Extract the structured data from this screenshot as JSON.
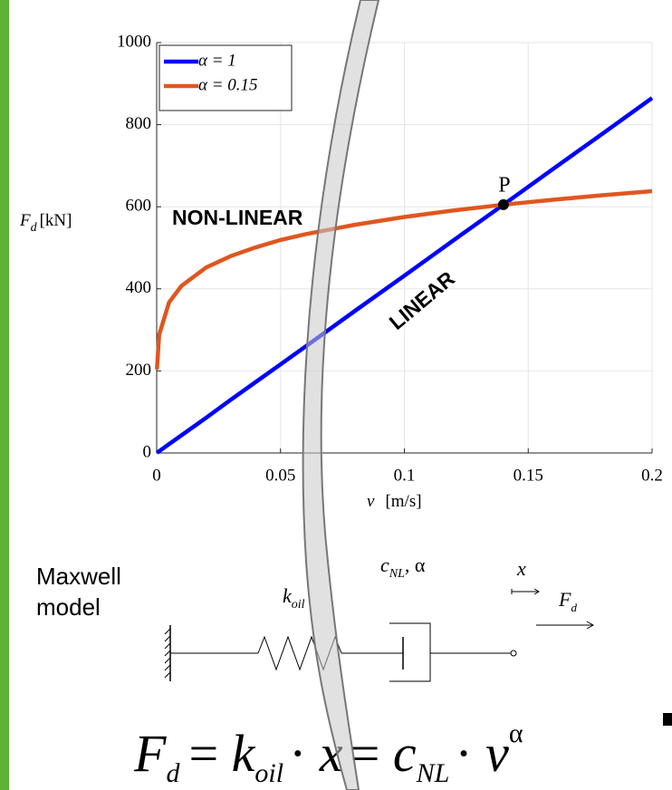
{
  "chart_data": {
    "type": "line",
    "x": [
      0.0001,
      0.001,
      0.005,
      0.01,
      0.02,
      0.03,
      0.04,
      0.05,
      0.06,
      0.08,
      0.1,
      0.12,
      0.14,
      0.16,
      0.18,
      0.2
    ],
    "series": [
      {
        "name": "α = 1",
        "color": "#0000ff",
        "values": [
          0.43,
          4.3,
          21.6,
          43,
          86,
          130,
          173,
          216,
          259,
          346,
          432,
          519,
          605,
          692,
          778,
          865
        ]
      },
      {
        "name": "α = 0.15",
        "color": "#e0561f",
        "values": [
          204,
          288,
          367,
          407,
          452,
          480,
          501,
          519,
          533,
          556,
          575,
          591,
          605,
          617,
          628,
          638
        ]
      }
    ],
    "xlim": [
      0,
      0.2
    ],
    "ylim": [
      0,
      1000
    ],
    "xticks": [
      0,
      0.05,
      0.1,
      0.15,
      0.2
    ],
    "yticks": [
      0,
      200,
      400,
      600,
      800,
      1000
    ],
    "grid": true,
    "legend": "upper left",
    "xlabel": {
      "symbol": "v",
      "unit": "[m/s]"
    },
    "ylabel": {
      "symbol": "F",
      "sub": "d",
      "unit": "[kN]"
    },
    "point": {
      "label": "P",
      "x": 0.14,
      "y": 605
    },
    "annotations": [
      "NON-LINEAR",
      "LINEAR"
    ]
  },
  "diagram": {
    "caption": [
      "Maxwell",
      "model"
    ],
    "k": "k",
    "k_sub": "oil",
    "c": "c",
    "c_sub": "NL",
    "c_alpha": ", α",
    "x": "x",
    "f": "F",
    "f_sub": "d"
  },
  "formula": [
    "F",
    "d",
    "= ",
    "k",
    "oil",
    "· ",
    "x",
    "= ",
    "c",
    "NL",
    "· ",
    "v",
    "α"
  ]
}
